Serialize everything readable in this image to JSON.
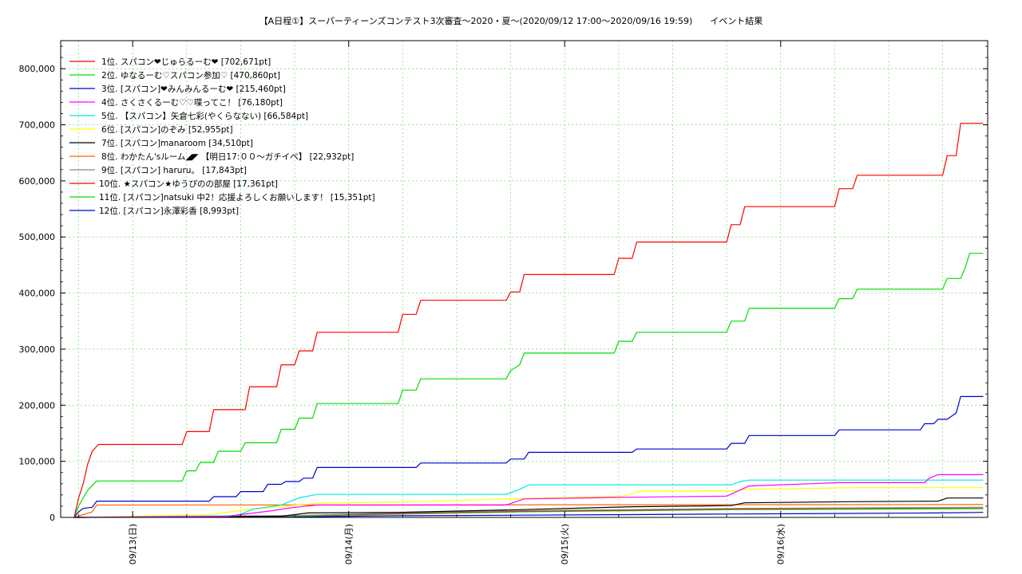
{
  "chart_data": {
    "type": "line",
    "title": "【A日程①】スーパーティーンズコンテスト3次審査〜2020・夏〜(2020/09/12 17:00〜2020/09/16 19:59)　　イベント結果",
    "xlabel": "",
    "ylabel": "",
    "ylim": [
      0,
      850000
    ],
    "yticks": [
      0,
      100000,
      200000,
      300000,
      400000,
      500000,
      600000,
      700000,
      800000
    ],
    "ytick_labels": [
      "0",
      "100,000",
      "200,000",
      "300,000",
      "400,000",
      "500,000",
      "600,000",
      "700,000",
      "800,000"
    ],
    "xlim": [
      -1.5,
      101.5
    ],
    "xticks": [
      6.5,
      30.5,
      54.5,
      78.5
    ],
    "xtick_labels": [
      "09/13(日)",
      "09/14(月)",
      "09/15(火)",
      "09/16(水)"
    ],
    "grid": true,
    "legend_position": "top-left",
    "series": [
      {
        "name": "1位. スパコン❤じゅらるーむ❤ [702,671pt]",
        "color": "#ff0000",
        "points": [
          [
            0,
            0
          ],
          [
            0.5,
            35000
          ],
          [
            1,
            60000
          ],
          [
            1.5,
            95000
          ],
          [
            2,
            118000
          ],
          [
            2.7,
            130000
          ],
          [
            12,
            130000
          ],
          [
            12.5,
            153000
          ],
          [
            15,
            153000
          ],
          [
            15.5,
            192000
          ],
          [
            19,
            192000
          ],
          [
            19.5,
            233000
          ],
          [
            22.5,
            233000
          ],
          [
            23,
            272000
          ],
          [
            24.5,
            272000
          ],
          [
            25,
            297000
          ],
          [
            26.5,
            297000
          ],
          [
            27,
            330000
          ],
          [
            36,
            330000
          ],
          [
            36.5,
            362000
          ],
          [
            38,
            362000
          ],
          [
            38.5,
            387000
          ],
          [
            48,
            387000
          ],
          [
            48.5,
            402000
          ],
          [
            49.5,
            402000
          ],
          [
            50,
            433000
          ],
          [
            60,
            433000
          ],
          [
            60.5,
            462000
          ],
          [
            62,
            462000
          ],
          [
            62.5,
            491000
          ],
          [
            72.5,
            491000
          ],
          [
            73,
            522000
          ],
          [
            74,
            522000
          ],
          [
            74.5,
            554000
          ],
          [
            84.5,
            554000
          ],
          [
            85,
            586000
          ],
          [
            86.5,
            586000
          ],
          [
            87,
            610000
          ],
          [
            96.5,
            610000
          ],
          [
            97,
            645000
          ],
          [
            98,
            645000
          ],
          [
            98.5,
            702671
          ],
          [
            101,
            702671
          ]
        ]
      },
      {
        "name": "2位. ゆなるーむ♡スパコン参加♡ [470,860pt]",
        "color": "#00dd00",
        "points": [
          [
            0,
            0
          ],
          [
            0.5,
            20000
          ],
          [
            1,
            35000
          ],
          [
            1.5,
            48000
          ],
          [
            2.5,
            65000
          ],
          [
            12,
            65000
          ],
          [
            12.5,
            83000
          ],
          [
            13.5,
            83000
          ],
          [
            14,
            98000
          ],
          [
            15.5,
            98000
          ],
          [
            16,
            118000
          ],
          [
            18.5,
            118000
          ],
          [
            19,
            133000
          ],
          [
            22.5,
            133000
          ],
          [
            23,
            157000
          ],
          [
            24.5,
            157000
          ],
          [
            25,
            177000
          ],
          [
            26.5,
            177000
          ],
          [
            27,
            203000
          ],
          [
            36,
            203000
          ],
          [
            36.5,
            227000
          ],
          [
            38,
            227000
          ],
          [
            38.5,
            247000
          ],
          [
            48,
            247000
          ],
          [
            48.5,
            262000
          ],
          [
            49.5,
            272000
          ],
          [
            50,
            293000
          ],
          [
            60,
            293000
          ],
          [
            60.5,
            314000
          ],
          [
            62,
            314000
          ],
          [
            62.5,
            330000
          ],
          [
            72.5,
            330000
          ],
          [
            73,
            350000
          ],
          [
            74.5,
            350000
          ],
          [
            75,
            373000
          ],
          [
            84.5,
            373000
          ],
          [
            85,
            390000
          ],
          [
            86.5,
            390000
          ],
          [
            87,
            407000
          ],
          [
            96.5,
            407000
          ],
          [
            97,
            426000
          ],
          [
            98.5,
            426000
          ],
          [
            99,
            445000
          ],
          [
            99.5,
            470860
          ],
          [
            101,
            470860
          ]
        ]
      },
      {
        "name": "3位. [スパコン]❤みんみんるーむ❤ [215,460pt]",
        "color": "#0000cc",
        "points": [
          [
            0,
            0
          ],
          [
            0.5,
            10000
          ],
          [
            1,
            16000
          ],
          [
            2,
            18000
          ],
          [
            2.5,
            29000
          ],
          [
            15,
            29000
          ],
          [
            15.5,
            37000
          ],
          [
            18,
            37000
          ],
          [
            18.5,
            46000
          ],
          [
            21,
            46000
          ],
          [
            21.5,
            59000
          ],
          [
            23,
            59000
          ],
          [
            23.5,
            64000
          ],
          [
            25,
            64000
          ],
          [
            25.5,
            70000
          ],
          [
            26.5,
            70000
          ],
          [
            27,
            89000
          ],
          [
            38,
            89000
          ],
          [
            38.5,
            97000
          ],
          [
            48,
            97000
          ],
          [
            48.5,
            104000
          ],
          [
            50,
            104000
          ],
          [
            50.5,
            116000
          ],
          [
            62,
            116000
          ],
          [
            62.5,
            122000
          ],
          [
            72.5,
            122000
          ],
          [
            73,
            132000
          ],
          [
            74.5,
            132000
          ],
          [
            75,
            146000
          ],
          [
            84.5,
            146000
          ],
          [
            85,
            156000
          ],
          [
            94,
            156000
          ],
          [
            94.5,
            167000
          ],
          [
            95.5,
            167000
          ],
          [
            96,
            175000
          ],
          [
            97,
            175000
          ],
          [
            98,
            186000
          ],
          [
            98.5,
            215460
          ],
          [
            101,
            215460
          ]
        ]
      },
      {
        "name": "4位. さくさくるーむ♡♡喋ってこ！ [76,180pt]",
        "color": "#ff00ff",
        "points": [
          [
            0,
            0
          ],
          [
            17,
            2000
          ],
          [
            20,
            8000
          ],
          [
            22,
            12000
          ],
          [
            24,
            17000
          ],
          [
            27,
            22000
          ],
          [
            48,
            22000
          ],
          [
            50,
            33000
          ],
          [
            62,
            36000
          ],
          [
            72.5,
            38000
          ],
          [
            75,
            56000
          ],
          [
            85,
            62000
          ],
          [
            94.5,
            62000
          ],
          [
            95,
            70000
          ],
          [
            96,
            76180
          ],
          [
            101,
            76180
          ]
        ]
      },
      {
        "name": "5位. 【スパコン】矢倉七彩(やくらなない) [66,584pt]",
        "color": "#00e5e5",
        "points": [
          [
            0,
            0
          ],
          [
            18,
            3000
          ],
          [
            20,
            15000
          ],
          [
            23,
            22000
          ],
          [
            25,
            35000
          ],
          [
            27,
            41000
          ],
          [
            48,
            41000
          ],
          [
            49.5,
            50000
          ],
          [
            50.5,
            58000
          ],
          [
            73,
            58000
          ],
          [
            74,
            64000
          ],
          [
            75,
            66584
          ],
          [
            101,
            66584
          ]
        ]
      },
      {
        "name": "6位. [スパコン]のぞみ [52,955pt]",
        "color": "#ffff00",
        "points": [
          [
            0,
            0
          ],
          [
            15,
            5000
          ],
          [
            20,
            15000
          ],
          [
            27,
            25000
          ],
          [
            38,
            28000
          ],
          [
            48,
            33000
          ],
          [
            61,
            38000
          ],
          [
            63,
            47000
          ],
          [
            73,
            47000
          ],
          [
            75,
            50000
          ],
          [
            87,
            52955
          ],
          [
            101,
            52955
          ]
        ]
      },
      {
        "name": "7位. [スパコン]manaroom [34,510pt]",
        "color": "#000000",
        "points": [
          [
            0,
            0
          ],
          [
            23,
            2000
          ],
          [
            26,
            8000
          ],
          [
            36,
            9000
          ],
          [
            50,
            14000
          ],
          [
            62,
            19000
          ],
          [
            73,
            21000
          ],
          [
            74.5,
            26000
          ],
          [
            86,
            28000
          ],
          [
            96,
            29000
          ],
          [
            97,
            34510
          ],
          [
            101,
            34510
          ]
        ]
      },
      {
        "name": "8位. わかたん'sルーム◢◤ 【明日17:００〜ガチイベ】 [22,932pt]",
        "color": "#ff6600",
        "points": [
          [
            0,
            0
          ],
          [
            2,
            10000
          ],
          [
            2.5,
            22000
          ],
          [
            101,
            22932
          ]
        ]
      },
      {
        "name": "9位. [スパコン] haruru。 [17,843pt]",
        "color": "#888888",
        "points": [
          [
            0,
            0
          ],
          [
            24,
            3000
          ],
          [
            36,
            8000
          ],
          [
            50,
            12000
          ],
          [
            62,
            14000
          ],
          [
            74,
            16000
          ],
          [
            101,
            17843
          ]
        ]
      },
      {
        "name": "10位. ★スパコン★ゆうぴのの部屋 [17,361pt]",
        "color": "#ff0000",
        "points": [
          [
            0,
            0
          ],
          [
            24,
            3000
          ],
          [
            36,
            7000
          ],
          [
            50,
            11000
          ],
          [
            62,
            13000
          ],
          [
            74,
            15000
          ],
          [
            101,
            17361
          ]
        ]
      },
      {
        "name": "11位. [スパコン]natsuki 中2！応援よろしくお願いします！ [15,351pt]",
        "color": "#00dd00",
        "points": [
          [
            0,
            0
          ],
          [
            24,
            2000
          ],
          [
            36,
            6000
          ],
          [
            50,
            10000
          ],
          [
            62,
            12000
          ],
          [
            74,
            14000
          ],
          [
            101,
            15351
          ]
        ]
      },
      {
        "name": "12位. [スパコン]永澤彩香 [8,993pt]",
        "color": "#0000cc",
        "points": [
          [
            0,
            0
          ],
          [
            24,
            1000
          ],
          [
            36,
            3000
          ],
          [
            50,
            4000
          ],
          [
            62,
            5000
          ],
          [
            72,
            6000
          ],
          [
            84,
            7000
          ],
          [
            96,
            8000
          ],
          [
            101,
            8993
          ]
        ]
      }
    ]
  }
}
